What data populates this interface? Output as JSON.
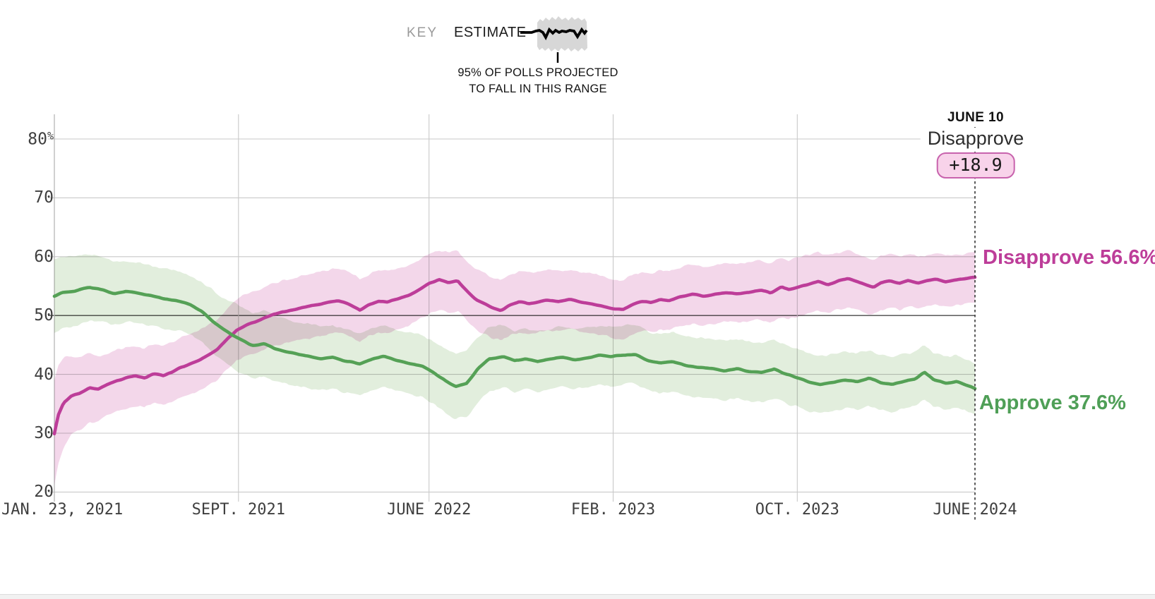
{
  "key": {
    "label": "KEY",
    "estimate_label": "ESTIMATE",
    "caption_line1": "95% OF POLLS PROJECTED",
    "caption_line2": "TO FALL IN THIS RANGE"
  },
  "annotation": {
    "date": "JUNE 10",
    "series_name": "Disapprove",
    "spread_value": "+18.9"
  },
  "line_labels": {
    "disapprove": "Disapprove 56.6%",
    "approve": "Approve 37.6%"
  },
  "colors": {
    "disapprove_line": "#bd3d99",
    "disapprove_band": "#f3d7ea",
    "approve_line": "#55a156",
    "approve_band": "#e2eedd",
    "grid_light": "#c9c9c9",
    "grid_emphasis": "#4a4a4a",
    "axis_line": "#b5b5b5",
    "end_marker": "#3f3f3f",
    "badge_bg": "#f8d3ea",
    "badge_border": "#c863ad",
    "key_sample_band": "#d7d7d7",
    "key_sample_line": "#000000"
  },
  "chart_data": {
    "type": "line",
    "title": "",
    "xlabel": "",
    "ylabel": "",
    "x_range": {
      "start": "JAN. 23, 2021",
      "end": "JUNE 10, 2024"
    },
    "ylim": [
      20,
      80
    ],
    "grid": true,
    "legend_position": "right-of-line-ends",
    "y_ticks": [
      {
        "label": "80",
        "suffix": "%",
        "value": 80
      },
      {
        "label": "70",
        "value": 70
      },
      {
        "label": "60",
        "value": 60
      },
      {
        "label": "50",
        "value": 50,
        "emphasis": true
      },
      {
        "label": "40",
        "value": 40
      },
      {
        "label": "30",
        "value": 30
      },
      {
        "label": "20",
        "value": 20
      }
    ],
    "x_ticks": [
      {
        "label": "JAN. 23, 2021",
        "t": 0.0,
        "align": "left"
      },
      {
        "label": "SEPT. 2021",
        "t": 0.2
      },
      {
        "label": "JUNE 2022",
        "t": 0.407
      },
      {
        "label": "FEB. 2023",
        "t": 0.607
      },
      {
        "label": "OCT. 2023",
        "t": 0.807
      },
      {
        "label": "JUNE 2024",
        "t": 1.0,
        "no_gridline": true
      }
    ],
    "end_marker_t": 1.0,
    "series": [
      {
        "name": "Disapprove",
        "end_value": 56.6,
        "color": "#bd3d99",
        "band_color": "#f3d7ea",
        "points": [
          [
            0,
            30.0
          ],
          [
            0.004,
            33.0
          ],
          [
            0.01,
            35.2
          ],
          [
            0.018,
            36.3
          ],
          [
            0.028,
            36.8
          ],
          [
            0.038,
            37.7
          ],
          [
            0.048,
            37.5
          ],
          [
            0.058,
            38.3
          ],
          [
            0.068,
            38.9
          ],
          [
            0.078,
            39.4
          ],
          [
            0.088,
            39.7
          ],
          [
            0.098,
            39.4
          ],
          [
            0.108,
            40.1
          ],
          [
            0.118,
            39.8
          ],
          [
            0.128,
            40.4
          ],
          [
            0.138,
            41.2
          ],
          [
            0.148,
            41.8
          ],
          [
            0.158,
            42.4
          ],
          [
            0.168,
            43.3
          ],
          [
            0.178,
            44.4
          ],
          [
            0.188,
            46.0
          ],
          [
            0.198,
            47.5
          ],
          [
            0.208,
            48.4
          ],
          [
            0.218,
            48.9
          ],
          [
            0.228,
            49.6
          ],
          [
            0.238,
            50.2
          ],
          [
            0.248,
            50.6
          ],
          [
            0.258,
            50.9
          ],
          [
            0.268,
            51.3
          ],
          [
            0.278,
            51.6
          ],
          [
            0.288,
            51.9
          ],
          [
            0.298,
            52.3
          ],
          [
            0.308,
            52.6
          ],
          [
            0.318,
            52.1
          ],
          [
            0.332,
            50.9
          ],
          [
            0.342,
            51.8
          ],
          [
            0.352,
            52.4
          ],
          [
            0.362,
            52.3
          ],
          [
            0.372,
            52.8
          ],
          [
            0.385,
            53.4
          ],
          [
            0.398,
            54.5
          ],
          [
            0.408,
            55.5
          ],
          [
            0.418,
            56.1
          ],
          [
            0.428,
            55.6
          ],
          [
            0.438,
            55.9
          ],
          [
            0.448,
            54.2
          ],
          [
            0.458,
            52.7
          ],
          [
            0.468,
            52.0
          ],
          [
            0.478,
            51.2
          ],
          [
            0.485,
            50.9
          ],
          [
            0.495,
            51.8
          ],
          [
            0.505,
            52.4
          ],
          [
            0.515,
            52.0
          ],
          [
            0.525,
            52.3
          ],
          [
            0.535,
            52.6
          ],
          [
            0.548,
            52.4
          ],
          [
            0.56,
            52.7
          ],
          [
            0.572,
            52.3
          ],
          [
            0.585,
            52.0
          ],
          [
            0.595,
            51.6
          ],
          [
            0.608,
            51.1
          ],
          [
            0.618,
            51.0
          ],
          [
            0.628,
            51.9
          ],
          [
            0.638,
            52.4
          ],
          [
            0.648,
            52.2
          ],
          [
            0.658,
            52.7
          ],
          [
            0.668,
            52.5
          ],
          [
            0.68,
            53.2
          ],
          [
            0.693,
            53.6
          ],
          [
            0.705,
            53.3
          ],
          [
            0.718,
            53.6
          ],
          [
            0.73,
            53.9
          ],
          [
            0.742,
            53.7
          ],
          [
            0.755,
            54.0
          ],
          [
            0.768,
            54.3
          ],
          [
            0.778,
            53.8
          ],
          [
            0.79,
            54.9
          ],
          [
            0.798,
            54.4
          ],
          [
            0.808,
            54.8
          ],
          [
            0.82,
            55.4
          ],
          [
            0.83,
            55.8
          ],
          [
            0.84,
            55.2
          ],
          [
            0.852,
            55.9
          ],
          [
            0.862,
            56.2
          ],
          [
            0.872,
            55.8
          ],
          [
            0.882,
            55.2
          ],
          [
            0.89,
            54.8
          ],
          [
            0.898,
            55.6
          ],
          [
            0.908,
            55.9
          ],
          [
            0.918,
            55.5
          ],
          [
            0.928,
            56.0
          ],
          [
            0.938,
            55.5
          ],
          [
            0.948,
            55.9
          ],
          [
            0.958,
            56.2
          ],
          [
            0.968,
            55.7
          ],
          [
            0.978,
            56.0
          ],
          [
            0.988,
            56.2
          ],
          [
            1,
            56.6
          ]
        ],
        "band_halfwidth": [
          [
            0,
            9.0
          ],
          [
            0.02,
            6.5
          ],
          [
            0.05,
            5.4
          ],
          [
            0.1,
            5.0
          ],
          [
            0.2,
            5.2
          ],
          [
            0.3,
            5.5
          ],
          [
            0.4,
            5.0
          ],
          [
            0.5,
            5.2
          ],
          [
            0.6,
            5.0
          ],
          [
            0.7,
            5.0
          ],
          [
            0.8,
            5.0
          ],
          [
            0.9,
            4.6
          ],
          [
            1,
            4.2
          ]
        ]
      },
      {
        "name": "Approve",
        "end_value": 37.6,
        "color": "#55a156",
        "band_color": "#e2eedd",
        "points": [
          [
            0,
            53.3
          ],
          [
            0.008,
            53.9
          ],
          [
            0.022,
            54.1
          ],
          [
            0.038,
            54.8
          ],
          [
            0.052,
            54.4
          ],
          [
            0.065,
            53.7
          ],
          [
            0.078,
            54.1
          ],
          [
            0.092,
            53.8
          ],
          [
            0.105,
            53.4
          ],
          [
            0.118,
            52.9
          ],
          [
            0.132,
            52.5
          ],
          [
            0.147,
            51.9
          ],
          [
            0.16,
            50.7
          ],
          [
            0.175,
            48.6
          ],
          [
            0.19,
            47.0
          ],
          [
            0.205,
            45.7
          ],
          [
            0.215,
            44.9
          ],
          [
            0.228,
            45.2
          ],
          [
            0.24,
            44.3
          ],
          [
            0.252,
            43.9
          ],
          [
            0.265,
            43.4
          ],
          [
            0.278,
            43.1
          ],
          [
            0.29,
            42.7
          ],
          [
            0.302,
            42.9
          ],
          [
            0.315,
            42.3
          ],
          [
            0.332,
            41.8
          ],
          [
            0.345,
            42.6
          ],
          [
            0.358,
            43.1
          ],
          [
            0.372,
            42.4
          ],
          [
            0.385,
            41.9
          ],
          [
            0.4,
            41.4
          ],
          [
            0.412,
            40.3
          ],
          [
            0.425,
            38.9
          ],
          [
            0.436,
            37.9
          ],
          [
            0.448,
            38.4
          ],
          [
            0.46,
            40.9
          ],
          [
            0.472,
            42.6
          ],
          [
            0.488,
            43.0
          ],
          [
            0.5,
            42.3
          ],
          [
            0.512,
            42.6
          ],
          [
            0.525,
            42.2
          ],
          [
            0.538,
            42.6
          ],
          [
            0.552,
            43.0
          ],
          [
            0.565,
            42.5
          ],
          [
            0.578,
            42.8
          ],
          [
            0.592,
            43.2
          ],
          [
            0.605,
            43.0
          ],
          [
            0.618,
            43.3
          ],
          [
            0.631,
            43.4
          ],
          [
            0.645,
            42.3
          ],
          [
            0.658,
            41.9
          ],
          [
            0.672,
            42.2
          ],
          [
            0.685,
            41.5
          ],
          [
            0.7,
            41.2
          ],
          [
            0.715,
            41.0
          ],
          [
            0.728,
            40.6
          ],
          [
            0.742,
            41.0
          ],
          [
            0.755,
            40.5
          ],
          [
            0.768,
            40.3
          ],
          [
            0.782,
            40.9
          ],
          [
            0.795,
            40.0
          ],
          [
            0.808,
            39.4
          ],
          [
            0.82,
            38.7
          ],
          [
            0.832,
            38.3
          ],
          [
            0.845,
            38.6
          ],
          [
            0.858,
            39.0
          ],
          [
            0.872,
            38.8
          ],
          [
            0.885,
            39.4
          ],
          [
            0.898,
            38.6
          ],
          [
            0.91,
            38.3
          ],
          [
            0.922,
            38.8
          ],
          [
            0.935,
            39.2
          ],
          [
            0.945,
            40.4
          ],
          [
            0.955,
            39.1
          ],
          [
            0.968,
            38.5
          ],
          [
            0.98,
            38.8
          ],
          [
            0.99,
            38.2
          ],
          [
            1,
            37.6
          ]
        ],
        "band_halfwidth": [
          [
            0,
            6.2
          ],
          [
            0.03,
            5.8
          ],
          [
            0.08,
            5.2
          ],
          [
            0.15,
            5.0
          ],
          [
            0.2,
            5.6
          ],
          [
            0.3,
            5.4
          ],
          [
            0.4,
            5.2
          ],
          [
            0.45,
            5.6
          ],
          [
            0.5,
            5.2
          ],
          [
            0.6,
            5.0
          ],
          [
            0.7,
            5.0
          ],
          [
            0.8,
            5.0
          ],
          [
            0.9,
            4.7
          ],
          [
            1,
            4.4
          ]
        ]
      }
    ]
  }
}
